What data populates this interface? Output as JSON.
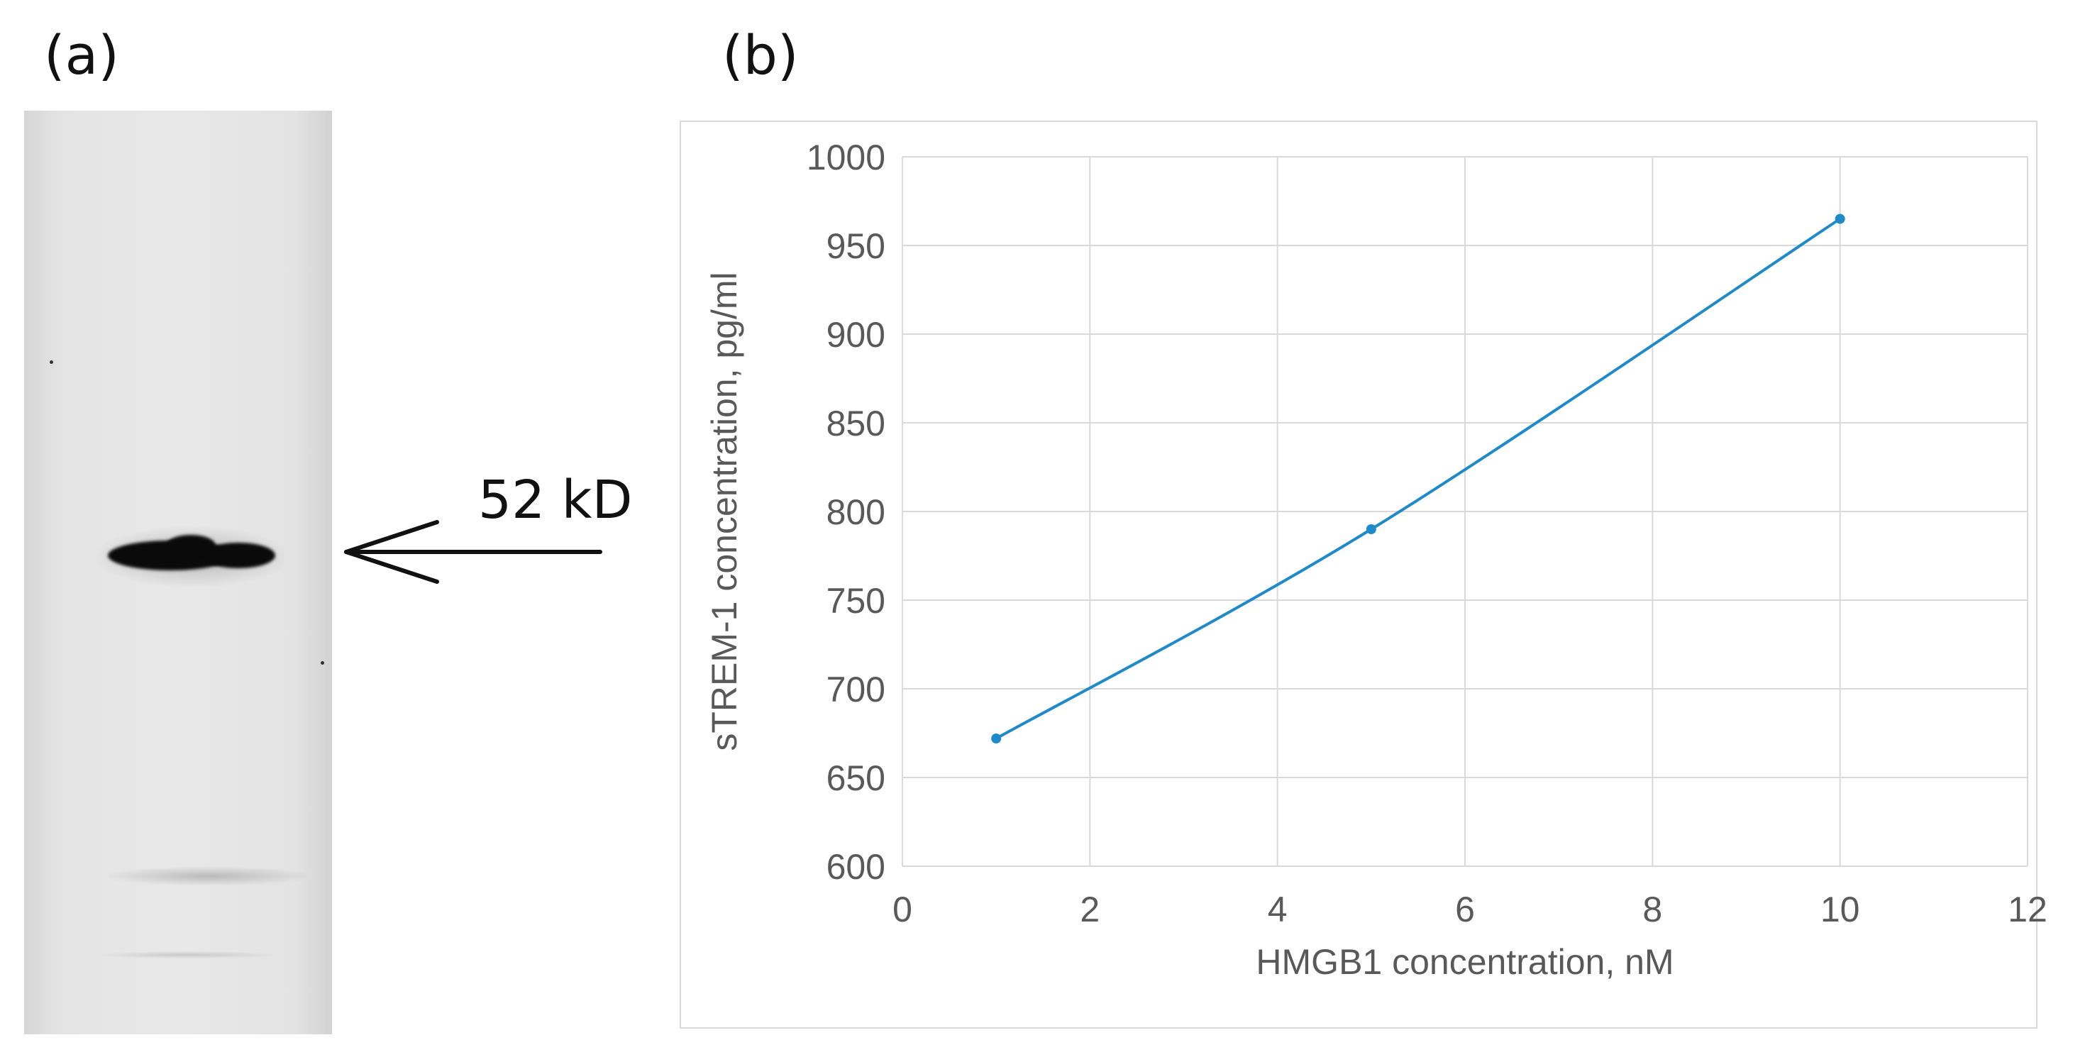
{
  "panels": {
    "a_label": "(a)",
    "b_label": "(b)"
  },
  "blot": {
    "marker_label": "52 kD"
  },
  "chart_data": {
    "type": "line",
    "title": "",
    "xlabel": "HMGB1 concentration, nM",
    "ylabel": "sTREM-1 concentration, pg/ml",
    "xlim": [
      0,
      12
    ],
    "ylim": [
      600,
      1000
    ],
    "x_ticks": [
      0,
      2,
      4,
      6,
      8,
      10,
      12
    ],
    "y_ticks": [
      600,
      650,
      700,
      750,
      800,
      850,
      900,
      950,
      1000
    ],
    "grid": true,
    "smooth": true,
    "series": [
      {
        "color": "#1f8ac9",
        "x": [
          1,
          5,
          10
        ],
        "y": [
          672,
          790,
          965
        ]
      }
    ]
  }
}
